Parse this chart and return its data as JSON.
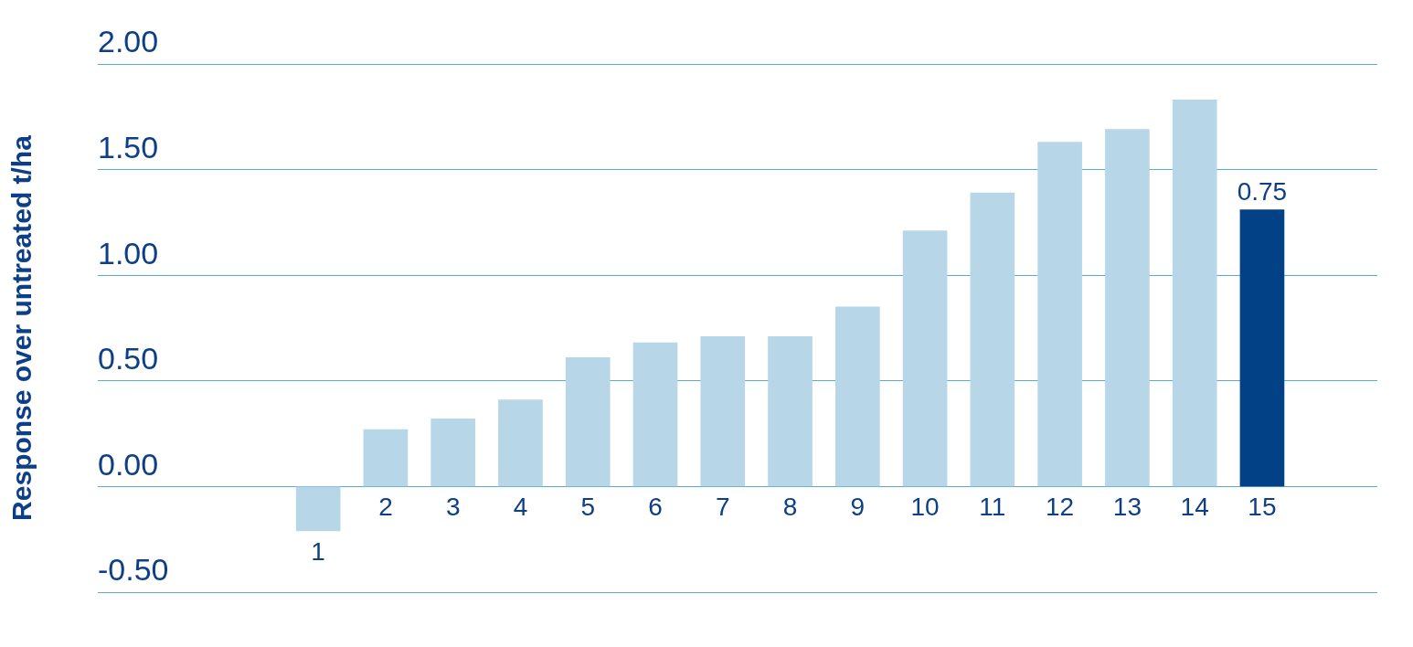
{
  "chart_data": {
    "type": "bar",
    "ylabel": "Response over untreated t/ha",
    "categories": [
      "1",
      "2",
      "3",
      "4",
      "5",
      "6",
      "7",
      "8",
      "9",
      "10",
      "11",
      "12",
      "13",
      "14",
      "15"
    ],
    "values": [
      -0.21,
      0.27,
      0.32,
      0.41,
      0.61,
      0.68,
      0.71,
      0.71,
      0.85,
      1.21,
      1.39,
      1.63,
      1.69,
      1.83,
      1.31
    ],
    "colors": [
      "#b7d7e8",
      "#b7d7e8",
      "#b7d7e8",
      "#b7d7e8",
      "#b7d7e8",
      "#b7d7e8",
      "#b7d7e8",
      "#b7d7e8",
      "#b7d7e8",
      "#b7d7e8",
      "#b7d7e8",
      "#b7d7e8",
      "#b7d7e8",
      "#b7d7e8",
      "#034187"
    ],
    "ylim": [
      -0.5,
      2.0
    ],
    "yticks": [
      {
        "value": -0.5,
        "label": "-0.50"
      },
      {
        "value": 0,
        "label": "0.00"
      },
      {
        "value": 0.5,
        "label": "0.50"
      },
      {
        "value": 1,
        "label": "1.00"
      },
      {
        "value": 1.5,
        "label": "1.50"
      },
      {
        "value": 2,
        "label": "2.00"
      }
    ],
    "grid": "y",
    "annotations": [
      {
        "text": "0.75",
        "x": "15",
        "y": 1.31
      }
    ]
  }
}
